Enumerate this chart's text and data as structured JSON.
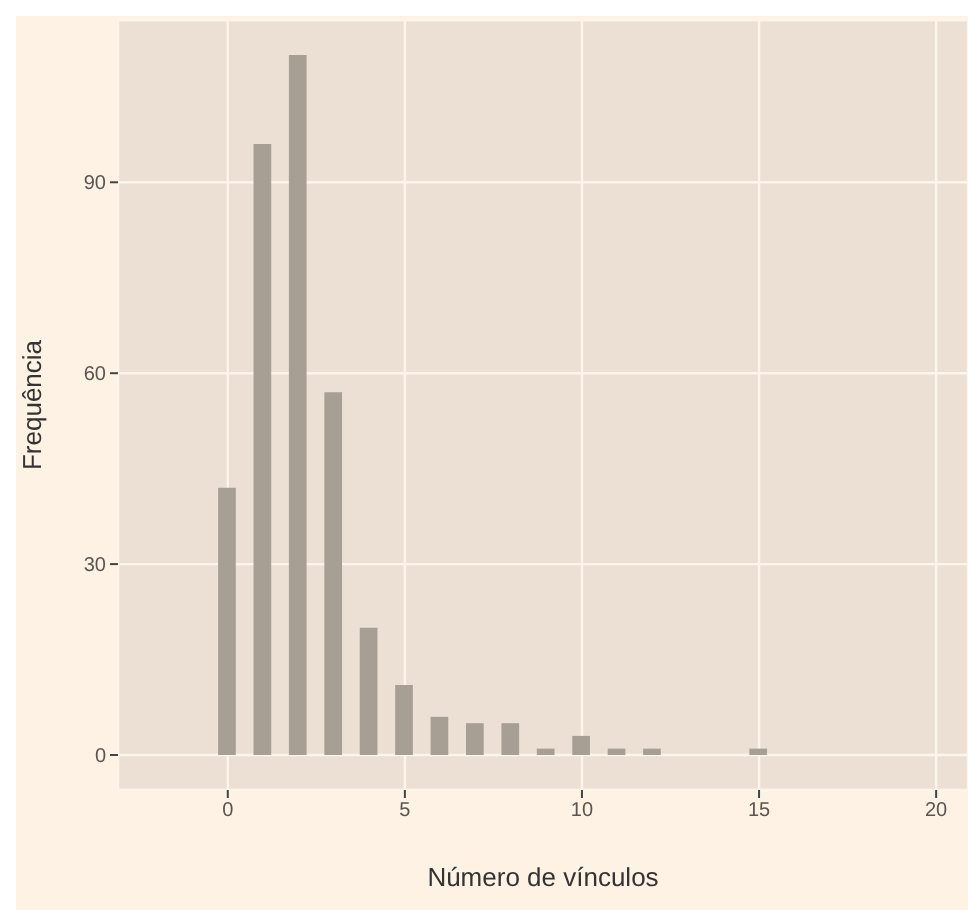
{
  "chart_data": {
    "type": "bar",
    "xlabel": "Número de vínculos",
    "ylabel": "Frequência",
    "x": [
      0,
      1,
      2,
      3,
      4,
      5,
      6,
      7,
      8,
      9,
      10,
      11,
      12,
      13,
      14,
      15
    ],
    "values": [
      42,
      96,
      110,
      57,
      20,
      11,
      6,
      5,
      5,
      1,
      3,
      1,
      1,
      0,
      0,
      1
    ],
    "color": "#a89f94",
    "xlim": [
      -3.1,
      20.9
    ],
    "xticks": [
      0,
      5,
      10,
      15,
      20
    ],
    "ylim": [
      -5.5,
      115.5
    ],
    "yticks": [
      0,
      30,
      60,
      90
    ],
    "grid": true
  }
}
